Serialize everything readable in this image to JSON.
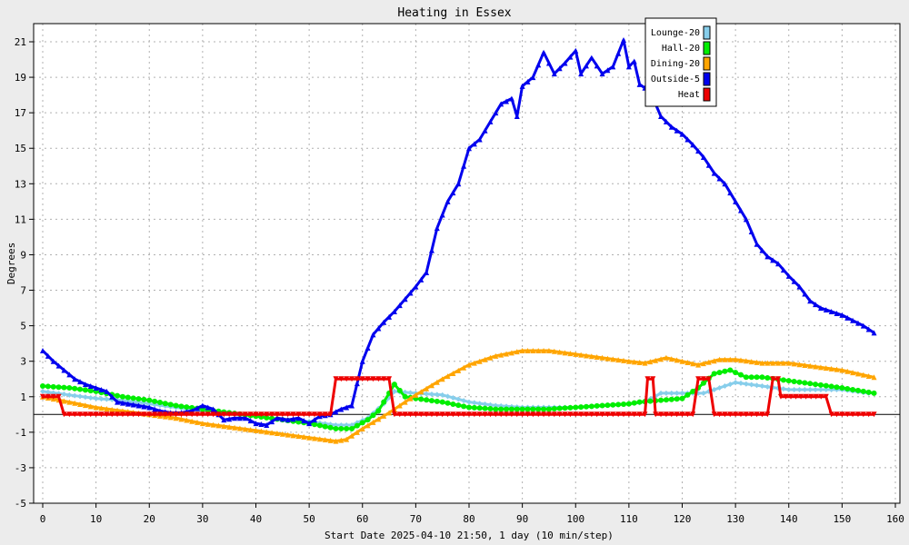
{
  "chart_data": {
    "type": "line",
    "title": "Heating in Essex",
    "xlabel": "Start Date 2025-04-10 21:50, 1 day (10 min/step)",
    "ylabel": "Degrees",
    "xlim": [
      0,
      160
    ],
    "ylim": [
      -5,
      22
    ],
    "x_ticks": [
      "0",
      "10",
      "20",
      "30",
      "40",
      "50",
      "60",
      "70",
      "80",
      "90",
      "100",
      "110",
      "120",
      "130",
      "140",
      "150",
      "160"
    ],
    "y_ticks": [
      "-5",
      "-3",
      "-1",
      "1",
      "3",
      "5",
      "7",
      "9",
      "11",
      "13",
      "15",
      "17",
      "19",
      "21"
    ],
    "grid": true,
    "legend_position": "top-right",
    "background_color": "#ececec",
    "plot_background": "#ffffff",
    "zero_line": true,
    "series": [
      {
        "name": "Lounge-20",
        "color": "#87ceeb",
        "marker": "diamond",
        "points": [
          [
            0,
            1.3
          ],
          [
            5,
            1.1
          ],
          [
            10,
            0.9
          ],
          [
            15,
            0.8
          ],
          [
            20,
            0.6
          ],
          [
            25,
            0.4
          ],
          [
            30,
            0.2
          ],
          [
            35,
            0.1
          ],
          [
            40,
            -0.1
          ],
          [
            45,
            -0.3
          ],
          [
            50,
            -0.4
          ],
          [
            55,
            -0.6
          ],
          [
            58,
            -0.6
          ],
          [
            61,
            -0.2
          ],
          [
            64,
            0.6
          ],
          [
            66,
            1.3
          ],
          [
            70,
            1.2
          ],
          [
            75,
            1.1
          ],
          [
            80,
            0.7
          ],
          [
            85,
            0.5
          ],
          [
            90,
            0.4
          ],
          [
            95,
            0.4
          ],
          [
            100,
            0.4
          ],
          [
            105,
            0.5
          ],
          [
            110,
            0.6
          ],
          [
            113,
            0.7
          ],
          [
            116,
            1.2
          ],
          [
            120,
            1.2
          ],
          [
            124,
            1.2
          ],
          [
            127,
            1.5
          ],
          [
            130,
            1.8
          ],
          [
            135,
            1.6
          ],
          [
            140,
            1.4
          ],
          [
            145,
            1.4
          ],
          [
            150,
            1.4
          ],
          [
            155,
            1.2
          ]
        ]
      },
      {
        "name": "Hall-20",
        "color": "#00ee00",
        "marker": "circle",
        "points": [
          [
            0,
            1.6
          ],
          [
            5,
            1.5
          ],
          [
            10,
            1.3
          ],
          [
            15,
            1.0
          ],
          [
            20,
            0.8
          ],
          [
            25,
            0.5
          ],
          [
            30,
            0.3
          ],
          [
            35,
            0.1
          ],
          [
            40,
            -0.1
          ],
          [
            45,
            -0.3
          ],
          [
            50,
            -0.5
          ],
          [
            55,
            -0.8
          ],
          [
            58,
            -0.8
          ],
          [
            61,
            -0.3
          ],
          [
            63,
            0.2
          ],
          [
            66,
            1.7
          ],
          [
            68,
            1.0
          ],
          [
            70,
            0.9
          ],
          [
            75,
            0.7
          ],
          [
            80,
            0.4
          ],
          [
            85,
            0.3
          ],
          [
            90,
            0.3
          ],
          [
            95,
            0.3
          ],
          [
            100,
            0.4
          ],
          [
            105,
            0.5
          ],
          [
            110,
            0.6
          ],
          [
            112,
            0.7
          ],
          [
            116,
            0.8
          ],
          [
            120,
            0.9
          ],
          [
            123,
            1.5
          ],
          [
            126,
            2.3
          ],
          [
            129,
            2.5
          ],
          [
            132,
            2.1
          ],
          [
            135,
            2.1
          ],
          [
            140,
            1.9
          ],
          [
            145,
            1.7
          ],
          [
            150,
            1.5
          ],
          [
            156,
            1.2
          ]
        ]
      },
      {
        "name": "Dining-20",
        "color": "#ffa500",
        "marker": "triangle-up",
        "points": [
          [
            0,
            1.0
          ],
          [
            5,
            0.7
          ],
          [
            10,
            0.4
          ],
          [
            15,
            0.2
          ],
          [
            20,
            0.0
          ],
          [
            25,
            -0.2
          ],
          [
            30,
            -0.5
          ],
          [
            35,
            -0.7
          ],
          [
            40,
            -0.9
          ],
          [
            45,
            -1.1
          ],
          [
            50,
            -1.3
          ],
          [
            55,
            -1.5
          ],
          [
            57,
            -1.4
          ],
          [
            60,
            -0.8
          ],
          [
            65,
            0.1
          ],
          [
            70,
            1.1
          ],
          [
            75,
            2.0
          ],
          [
            80,
            2.8
          ],
          [
            85,
            3.3
          ],
          [
            90,
            3.6
          ],
          [
            95,
            3.6
          ],
          [
            100,
            3.4
          ],
          [
            105,
            3.2
          ],
          [
            110,
            3.0
          ],
          [
            113,
            2.9
          ],
          [
            117,
            3.2
          ],
          [
            120,
            3.0
          ],
          [
            123,
            2.8
          ],
          [
            127,
            3.1
          ],
          [
            130,
            3.1
          ],
          [
            135,
            2.9
          ],
          [
            140,
            2.9
          ],
          [
            145,
            2.7
          ],
          [
            150,
            2.5
          ],
          [
            156,
            2.1
          ]
        ]
      },
      {
        "name": "Outside-5",
        "color": "#0000ee",
        "marker": "triangle-up",
        "points": [
          [
            0,
            3.6
          ],
          [
            2,
            3.0
          ],
          [
            4,
            2.5
          ],
          [
            6,
            2.0
          ],
          [
            8,
            1.7
          ],
          [
            10,
            1.5
          ],
          [
            12,
            1.3
          ],
          [
            14,
            0.7
          ],
          [
            16,
            0.6
          ],
          [
            18,
            0.5
          ],
          [
            20,
            0.4
          ],
          [
            22,
            0.2
          ],
          [
            24,
            0.1
          ],
          [
            26,
            0.1
          ],
          [
            28,
            0.2
          ],
          [
            30,
            0.5
          ],
          [
            32,
            0.3
          ],
          [
            34,
            -0.3
          ],
          [
            36,
            -0.2
          ],
          [
            38,
            -0.2
          ],
          [
            40,
            -0.5
          ],
          [
            42,
            -0.6
          ],
          [
            44,
            -0.2
          ],
          [
            46,
            -0.3
          ],
          [
            48,
            -0.2
          ],
          [
            50,
            -0.5
          ],
          [
            52,
            -0.1
          ],
          [
            54,
            0.0
          ],
          [
            56,
            0.3
          ],
          [
            58,
            0.5
          ],
          [
            60,
            3.0
          ],
          [
            62,
            4.5
          ],
          [
            64,
            5.2
          ],
          [
            66,
            5.8
          ],
          [
            68,
            6.5
          ],
          [
            70,
            7.2
          ],
          [
            72,
            8.0
          ],
          [
            74,
            10.5
          ],
          [
            76,
            12.0
          ],
          [
            78,
            13.0
          ],
          [
            80,
            15.0
          ],
          [
            82,
            15.5
          ],
          [
            84,
            16.5
          ],
          [
            86,
            17.5
          ],
          [
            88,
            17.8
          ],
          [
            89,
            16.8
          ],
          [
            90,
            18.5
          ],
          [
            92,
            19.0
          ],
          [
            94,
            20.4
          ],
          [
            96,
            19.2
          ],
          [
            98,
            19.8
          ],
          [
            100,
            20.5
          ],
          [
            101,
            19.2
          ],
          [
            103,
            20.1
          ],
          [
            105,
            19.2
          ],
          [
            107,
            19.6
          ],
          [
            109,
            21.1
          ],
          [
            110,
            19.6
          ],
          [
            111,
            19.9
          ],
          [
            112,
            18.6
          ],
          [
            114,
            18.2
          ],
          [
            116,
            16.8
          ],
          [
            118,
            16.2
          ],
          [
            120,
            15.8
          ],
          [
            122,
            15.2
          ],
          [
            124,
            14.5
          ],
          [
            126,
            13.6
          ],
          [
            128,
            13.0
          ],
          [
            130,
            12.0
          ],
          [
            132,
            11.0
          ],
          [
            134,
            9.6
          ],
          [
            136,
            8.9
          ],
          [
            138,
            8.5
          ],
          [
            140,
            7.8
          ],
          [
            142,
            7.2
          ],
          [
            144,
            6.4
          ],
          [
            146,
            6.0
          ],
          [
            148,
            5.8
          ],
          [
            150,
            5.6
          ],
          [
            152,
            5.3
          ],
          [
            154,
            5.0
          ],
          [
            156,
            4.6
          ]
        ]
      },
      {
        "name": "Heat",
        "color": "#ee0000",
        "marker": "triangle-down",
        "points": [
          [
            0,
            1
          ],
          [
            3,
            1
          ],
          [
            4,
            0
          ],
          [
            54,
            0
          ],
          [
            55,
            2
          ],
          [
            65,
            2
          ],
          [
            66,
            0
          ],
          [
            113,
            0
          ],
          [
            113.5,
            2
          ],
          [
            114.5,
            2
          ],
          [
            115,
            0
          ],
          [
            122,
            0
          ],
          [
            123,
            2
          ],
          [
            125,
            2
          ],
          [
            126,
            0
          ],
          [
            136,
            0
          ],
          [
            137,
            2
          ],
          [
            138,
            2
          ],
          [
            138.5,
            1
          ],
          [
            147,
            1
          ],
          [
            148,
            0
          ],
          [
            156,
            0
          ]
        ]
      }
    ]
  }
}
